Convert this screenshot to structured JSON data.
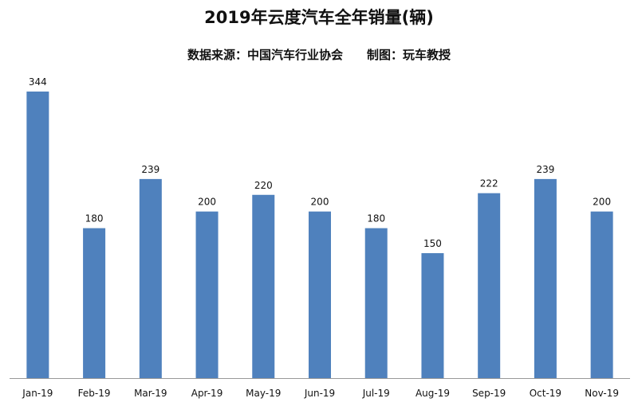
{
  "title": "2019年云度汽车全年销量(辆)",
  "subtitle": {
    "source": "数据来源：中国汽车行业协会",
    "author": "制图：玩车教授"
  },
  "colors": {
    "bar": "#4F81BD",
    "axis": "#999999"
  },
  "chart_data": {
    "type": "bar",
    "title": "2019年云度汽车全年销量(辆)",
    "categories": [
      "Jan-19",
      "Feb-19",
      "Mar-19",
      "Apr-19",
      "May-19",
      "Jun-19",
      "Jul-19",
      "Aug-19",
      "Sep-19",
      "Oct-19",
      "Nov-19"
    ],
    "values": [
      344,
      180,
      239,
      200,
      220,
      200,
      180,
      150,
      222,
      239,
      200
    ],
    "ylim": [
      0,
      344
    ],
    "xlabel": "",
    "ylabel": "",
    "grid": false,
    "legend": "none"
  }
}
